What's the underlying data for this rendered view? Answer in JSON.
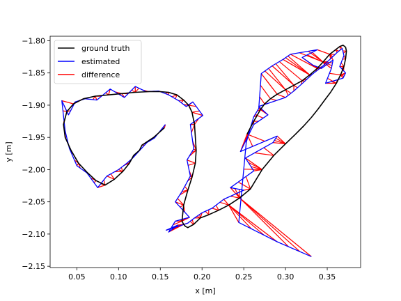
{
  "chart_data": {
    "type": "line",
    "title": "",
    "xlabel": "x [m]",
    "ylabel": "y [m]",
    "xlim": [
      0.018,
      0.39
    ],
    "ylim": [
      -2.152,
      -1.793
    ],
    "xticks": [
      "0.05",
      "0.10",
      "0.15",
      "0.20",
      "0.25",
      "0.30",
      "0.35"
    ],
    "yticks": [
      "−1.80",
      "−1.85",
      "−1.90",
      "−1.95",
      "−2.00",
      "−2.05",
      "−2.10",
      "−2.15"
    ],
    "grid": false,
    "legend_position": "upper left",
    "series": [
      {
        "name": "ground truth",
        "color": "#000000",
        "x": [
          0.155,
          0.142,
          0.128,
          0.125,
          0.118,
          0.113,
          0.105,
          0.095,
          0.084,
          0.073,
          0.062,
          0.052,
          0.043,
          0.036,
          0.034,
          0.038,
          0.046,
          0.058,
          0.072,
          0.088,
          0.104,
          0.12,
          0.136,
          0.15,
          0.16,
          0.17,
          0.178,
          0.184,
          0.188,
          0.191,
          0.193,
          0.192,
          0.188,
          0.183,
          0.178,
          0.176,
          0.178,
          0.18,
          0.183,
          0.19,
          0.198,
          0.208,
          0.22,
          0.232,
          0.245,
          0.258,
          0.272,
          0.286,
          0.3,
          0.312,
          0.322,
          0.331,
          0.339,
          0.347,
          0.354,
          0.361,
          0.366,
          0.37,
          0.372,
          0.373,
          0.372,
          0.369,
          0.365,
          0.36,
          0.353,
          0.345,
          0.338,
          0.329,
          0.32,
          0.31,
          0.3,
          0.29,
          0.282,
          0.275,
          0.27,
          0.266,
          0.262,
          0.258,
          0.254
        ],
        "y": [
          -1.935,
          -1.95,
          -1.962,
          -1.97,
          -1.978,
          -1.99,
          -2.003,
          -2.015,
          -2.024,
          -2.017,
          -2.004,
          -1.99,
          -1.97,
          -1.95,
          -1.93,
          -1.91,
          -1.898,
          -1.89,
          -1.886,
          -1.884,
          -1.882,
          -1.88,
          -1.879,
          -1.879,
          -1.88,
          -1.884,
          -1.892,
          -1.9,
          -1.911,
          -1.93,
          -1.97,
          -1.99,
          -2.012,
          -2.032,
          -2.055,
          -2.08,
          -2.085,
          -2.088,
          -2.09,
          -2.085,
          -2.075,
          -2.07,
          -2.063,
          -2.055,
          -2.044,
          -2.03,
          -2.0,
          -1.978,
          -1.96,
          -1.945,
          -1.932,
          -1.919,
          -1.906,
          -1.892,
          -1.88,
          -1.866,
          -1.853,
          -1.84,
          -1.828,
          -1.816,
          -1.81,
          -1.807,
          -1.809,
          -1.814,
          -1.821,
          -1.833,
          -1.843,
          -1.853,
          -1.862,
          -1.869,
          -1.876,
          -1.883,
          -1.89,
          -1.898,
          -1.907,
          -1.916,
          -1.925,
          -1.935,
          -1.945
        ]
      },
      {
        "name": "estimated",
        "color": "#0000ff",
        "x": [
          0.156,
          0.143,
          0.134,
          0.124,
          0.117,
          0.11,
          0.1,
          0.086,
          0.075,
          0.062,
          0.05,
          0.041,
          0.036,
          0.032,
          0.04,
          0.048,
          0.06,
          0.074,
          0.09,
          0.107,
          0.12,
          0.133,
          0.148,
          0.16,
          0.172,
          0.181,
          0.189,
          0.201,
          0.186,
          0.19,
          0.182,
          0.186,
          0.176,
          0.168,
          0.185,
          0.168,
          0.16,
          0.171,
          0.157,
          0.183,
          0.191,
          0.2,
          0.212,
          0.226,
          0.25,
          0.234,
          0.262,
          0.252,
          0.285,
          0.29,
          0.246,
          0.262,
          0.279,
          0.268,
          0.3,
          0.31,
          0.323,
          0.332,
          0.344,
          0.354,
          0.362,
          0.368,
          0.37,
          0.365,
          0.372,
          0.369,
          0.348,
          0.355,
          0.357,
          0.343,
          0.333,
          0.32,
          0.338,
          0.306,
          0.297,
          0.284,
          0.271,
          0.268,
          0.262,
          0.258,
          0.253,
          0.244,
          0.29,
          0.331
        ],
        "y": [
          -1.93,
          -1.951,
          -1.958,
          -1.972,
          -1.982,
          -1.99,
          -2.0,
          -2.01,
          -2.028,
          -2.005,
          -1.994,
          -1.967,
          -1.94,
          -1.893,
          -1.915,
          -1.895,
          -1.89,
          -1.892,
          -1.875,
          -1.888,
          -1.871,
          -1.879,
          -1.878,
          -1.884,
          -1.893,
          -1.902,
          -1.895,
          -1.916,
          -1.93,
          -1.968,
          -1.985,
          -2.01,
          -2.034,
          -2.05,
          -2.074,
          -2.08,
          -2.097,
          -2.086,
          -2.094,
          -2.083,
          -2.075,
          -2.067,
          -2.06,
          -2.046,
          -2.032,
          -2.028,
          -2.002,
          -1.982,
          -1.958,
          -1.948,
          -1.972,
          -1.93,
          -1.915,
          -1.902,
          -1.888,
          -1.878,
          -1.863,
          -1.852,
          -1.84,
          -1.828,
          -1.818,
          -1.812,
          -1.823,
          -1.84,
          -1.85,
          -1.858,
          -1.866,
          -1.843,
          -1.83,
          -1.843,
          -1.838,
          -1.826,
          -1.814,
          -1.821,
          -1.829,
          -1.839,
          -1.851,
          -1.905,
          -1.918,
          -1.935,
          -1.958,
          -2.082,
          -2.112,
          -2.135
        ],
        "marker": "none"
      }
    ],
    "difference_segments": {
      "name": "difference",
      "color": "#ff0000"
    },
    "legend": [
      {
        "label": "ground truth",
        "color": "#000000"
      },
      {
        "label": "estimated",
        "color": "#0000ff"
      },
      {
        "label": "difference",
        "color": "#ff0000"
      }
    ]
  }
}
